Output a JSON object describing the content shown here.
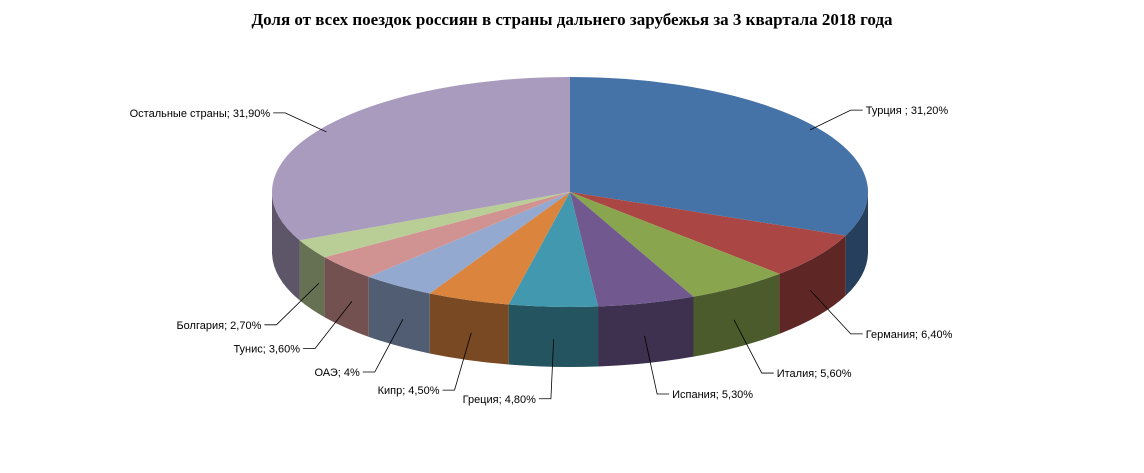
{
  "chart_data": {
    "type": "pie",
    "title": "Доля от всех  поездок россиян в страны дальнего зарубежья за 3 квартала 2018 года",
    "slices": [
      {
        "name": "Турция",
        "label": "Турция ; 31,20%",
        "value": 31.2,
        "color": "#4572A7"
      },
      {
        "name": "Германия",
        "label": "Германия; 6,40%",
        "value": 6.4,
        "color": "#AA4643"
      },
      {
        "name": "Италия",
        "label": "Италия; 5,60%",
        "value": 5.6,
        "color": "#89A54E"
      },
      {
        "name": "Испания",
        "label": "Испания; 5,30%",
        "value": 5.3,
        "color": "#71588F"
      },
      {
        "name": "Греция",
        "label": "Греция; 4,80%",
        "value": 4.8,
        "color": "#4198AF"
      },
      {
        "name": "Кипр",
        "label": "Кипр; 4,50%",
        "value": 4.5,
        "color": "#DB843D"
      },
      {
        "name": "ОАЭ",
        "label": "ОАЭ; 4%",
        "value": 4.0,
        "color": "#93A9CF"
      },
      {
        "name": "Тунис",
        "label": "Тунис; 3,60%",
        "value": 3.6,
        "color": "#D19392"
      },
      {
        "name": "Болгария",
        "label": "Болгария; 2,70%",
        "value": 2.7,
        "color": "#B9CD96"
      },
      {
        "name": "Остальные страны",
        "label": "Остальные страны; 31,90%",
        "value": 31.9,
        "color": "#A99BBD"
      }
    ]
  }
}
